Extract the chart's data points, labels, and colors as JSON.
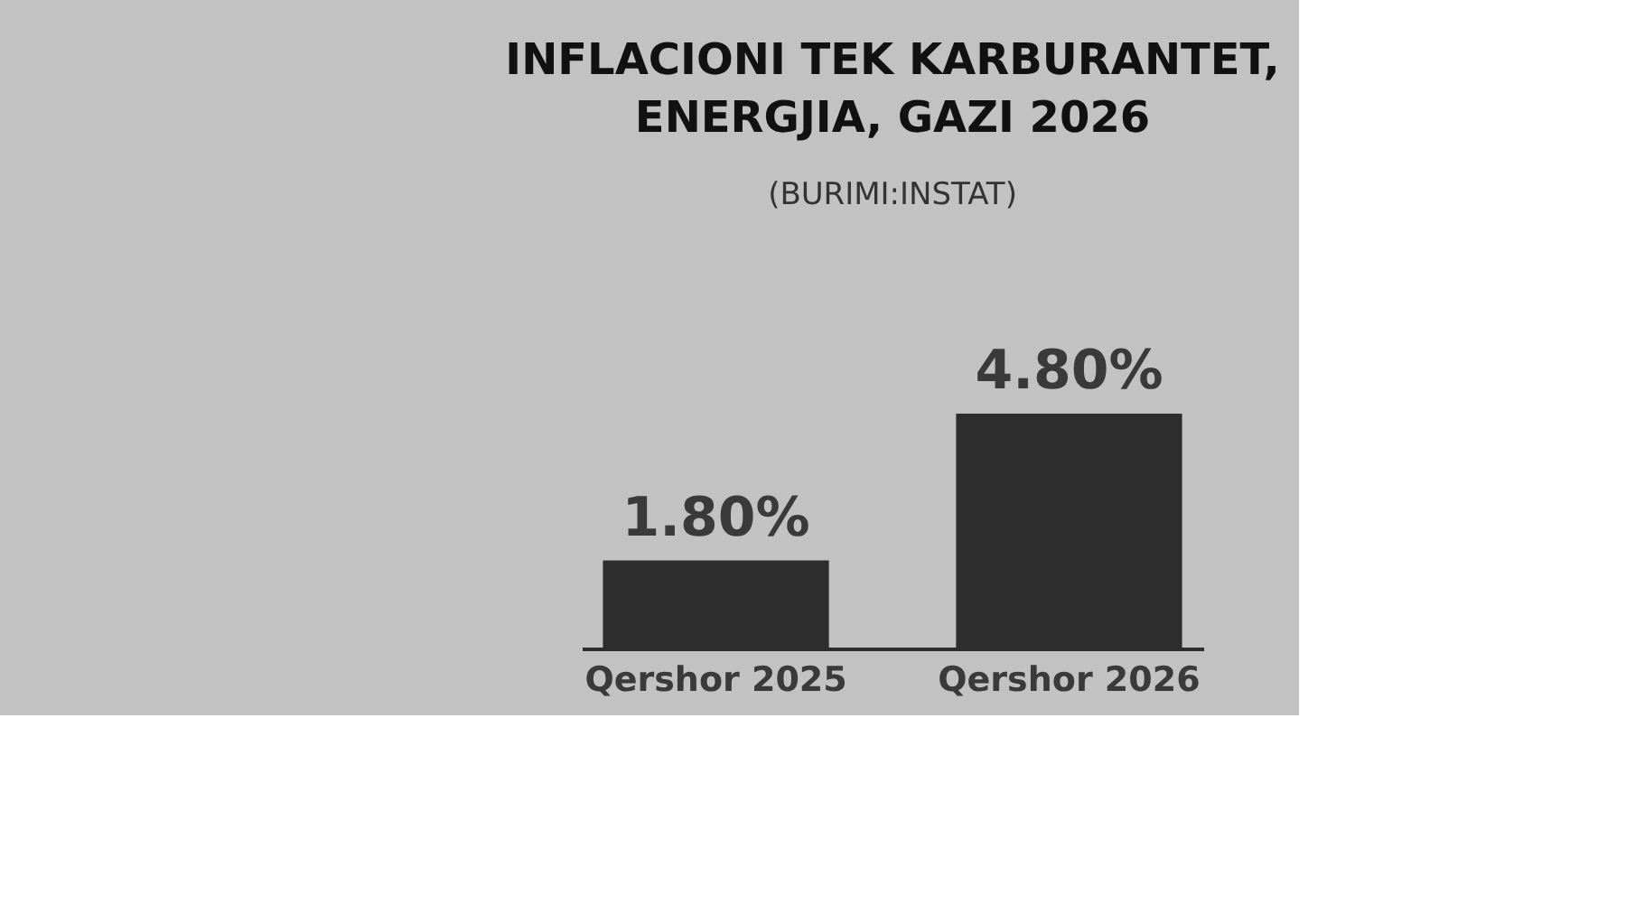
{
  "chart_data": {
    "type": "bar",
    "title": "INFLACIONI TEK KARBURANTET,\nENERGJIA, GAZI  2026",
    "subtitle": "(BURIMI:INSTAT)",
    "categories": [
      "Qershor 2025",
      "Qershor 2026"
    ],
    "values": [
      1.8,
      4.8
    ],
    "value_labels": [
      "1.80%",
      "4.80%"
    ],
    "color": "#2d2d2d",
    "grid": false
  }
}
